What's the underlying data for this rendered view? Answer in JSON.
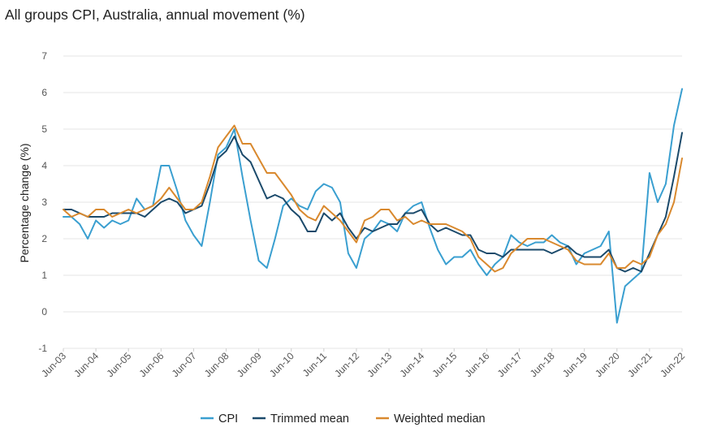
{
  "chart_data": {
    "type": "line",
    "title": "All groups CPI, Australia, annual movement (%)",
    "ylabel": "Percentage change (%)",
    "xlabel": "",
    "ylim": [
      -1,
      7
    ],
    "yticks": [
      -1,
      0,
      1,
      2,
      3,
      4,
      5,
      6,
      7
    ],
    "x_tick_labels": [
      "Jun-03",
      "Jun-04",
      "Jun-05",
      "Jun-06",
      "Jun-07",
      "Jun-08",
      "Jun-09",
      "Jun-10",
      "Jun-11",
      "Jun-12",
      "Jun-13",
      "Jun-14",
      "Jun-15",
      "Jun-16",
      "Jun-17",
      "Jun-18",
      "Jun-19",
      "Jun-20",
      "Jun-21",
      "Jun-22"
    ],
    "start_quarter": "Jun-03",
    "frequency": "quarterly",
    "grid": true,
    "legend_position": "bottom",
    "series": [
      {
        "name": "CPI",
        "color": "#3a9fd0",
        "values": [
          2.6,
          2.6,
          2.4,
          2.0,
          2.5,
          2.3,
          2.5,
          2.4,
          2.5,
          3.1,
          2.8,
          2.9,
          4.0,
          4.0,
          3.3,
          2.5,
          2.1,
          1.8,
          3.0,
          4.3,
          4.5,
          5.0,
          3.7,
          2.5,
          1.4,
          1.2,
          2.0,
          2.9,
          3.1,
          2.9,
          2.8,
          3.3,
          3.5,
          3.4,
          3.0,
          1.6,
          1.2,
          2.0,
          2.2,
          2.5,
          2.4,
          2.2,
          2.7,
          2.9,
          3.0,
          2.3,
          1.7,
          1.3,
          1.5,
          1.5,
          1.7,
          1.3,
          1.0,
          1.3,
          1.5,
          2.1,
          1.9,
          1.8,
          1.9,
          1.9,
          2.1,
          1.9,
          1.8,
          1.3,
          1.6,
          1.7,
          1.8,
          2.2,
          -0.3,
          0.7,
          0.9,
          1.1,
          3.8,
          3.0,
          3.5,
          5.1,
          6.1
        ]
      },
      {
        "name": "Trimmed mean",
        "color": "#1b4a6b",
        "values": [
          2.8,
          2.8,
          2.7,
          2.6,
          2.6,
          2.6,
          2.7,
          2.7,
          2.7,
          2.7,
          2.6,
          2.8,
          3.0,
          3.1,
          3.0,
          2.7,
          2.8,
          2.9,
          3.5,
          4.2,
          4.4,
          4.8,
          4.3,
          4.1,
          3.6,
          3.1,
          3.2,
          3.1,
          2.8,
          2.6,
          2.2,
          2.2,
          2.7,
          2.5,
          2.7,
          2.3,
          2.0,
          2.3,
          2.2,
          2.3,
          2.4,
          2.4,
          2.7,
          2.7,
          2.8,
          2.4,
          2.2,
          2.3,
          2.2,
          2.1,
          2.1,
          1.7,
          1.6,
          1.6,
          1.5,
          1.7,
          1.7,
          1.7,
          1.7,
          1.7,
          1.6,
          1.7,
          1.8,
          1.6,
          1.5,
          1.5,
          1.5,
          1.7,
          1.2,
          1.1,
          1.2,
          1.1,
          1.6,
          2.1,
          2.6,
          3.7,
          4.9
        ]
      },
      {
        "name": "Weighted median",
        "color": "#d9892e",
        "values": [
          2.8,
          2.6,
          2.7,
          2.6,
          2.8,
          2.8,
          2.6,
          2.7,
          2.8,
          2.7,
          2.8,
          2.9,
          3.1,
          3.4,
          3.1,
          2.8,
          2.8,
          3.0,
          3.7,
          4.5,
          4.8,
          5.1,
          4.6,
          4.6,
          4.2,
          3.8,
          3.8,
          3.5,
          3.2,
          2.8,
          2.6,
          2.5,
          2.9,
          2.7,
          2.5,
          2.2,
          1.9,
          2.5,
          2.6,
          2.8,
          2.8,
          2.5,
          2.6,
          2.4,
          2.5,
          2.4,
          2.4,
          2.4,
          2.3,
          2.2,
          2.0,
          1.5,
          1.3,
          1.1,
          1.2,
          1.6,
          1.8,
          2.0,
          2.0,
          2.0,
          1.9,
          1.8,
          1.7,
          1.4,
          1.3,
          1.3,
          1.3,
          1.6,
          1.2,
          1.2,
          1.4,
          1.3,
          1.5,
          2.1,
          2.4,
          3.0,
          4.2
        ]
      }
    ]
  }
}
